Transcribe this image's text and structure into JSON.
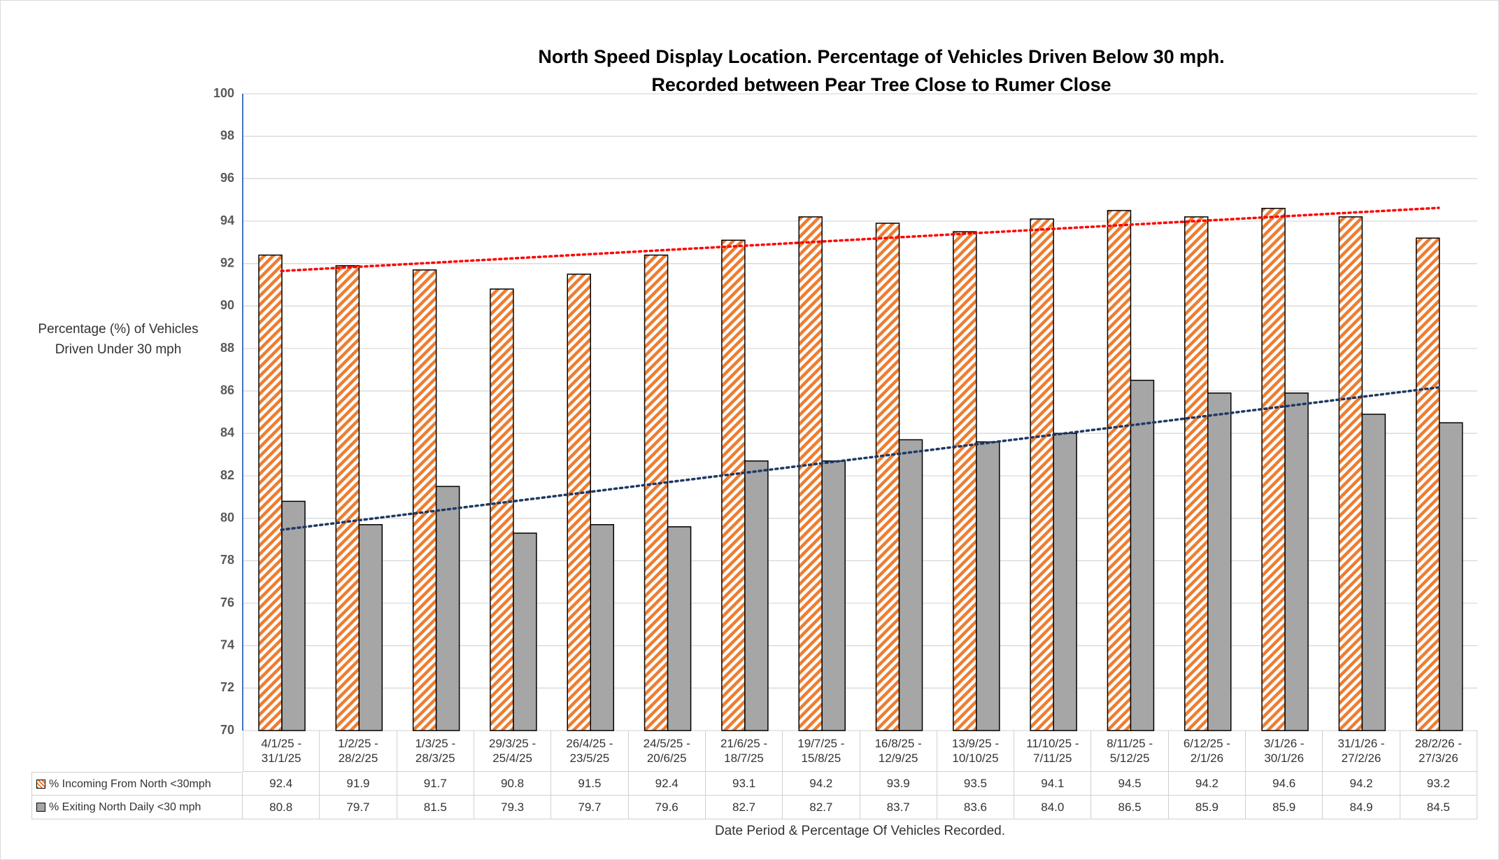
{
  "chart_data": {
    "type": "bar",
    "title": "North Speed Display Location. Percentage of Vehicles Driven Below 30 mph.",
    "subtitle": "Recorded between Pear Tree Close to Rumer Close",
    "y_label": "Percentage (%) of Vehicles Driven Under 30 mph",
    "x_label": "Date Period & Percentage Of Vehicles Recorded.",
    "categories": [
      "4/1/25 - 31/1/25",
      "1/2/25 - 28/2/25",
      "1/3/25 - 28/3/25",
      "29/3/25 - 25/4/25",
      "26/4/25 - 23/5/25",
      "24/5/25 - 20/6/25",
      "21/6/25 - 18/7/25",
      "19/7/25 - 15/8/25",
      "16/8/25 - 12/9/25",
      "13/9/25 - 10/10/25",
      "11/10/25 - 7/11/25",
      "8/11/25 - 5/12/25",
      "6/12/25 - 2/1/26",
      "3/1/26 - 30/1/26",
      "31/1/26 - 27/2/26",
      "28/2/26 - 27/3/26"
    ],
    "series": [
      {
        "name": "% Incoming From North <30mph",
        "color": "#ed7d31",
        "pattern": "hatch",
        "trendline_color": "#ff0000",
        "values": [
          92.4,
          91.9,
          91.7,
          90.8,
          91.5,
          92.4,
          93.1,
          94.2,
          93.9,
          93.5,
          94.1,
          94.5,
          94.2,
          94.6,
          94.2,
          93.2
        ]
      },
      {
        "name": "% Exiting North Daily <30 mph",
        "color": "#a6a6a6",
        "pattern": "solid",
        "trendline_color": "#1f3864",
        "values": [
          80.8,
          79.7,
          81.5,
          79.3,
          79.7,
          79.6,
          82.7,
          82.7,
          83.7,
          83.6,
          84,
          86.5,
          85.9,
          85.9,
          84.9,
          84.5
        ],
        "value_labels": [
          "80.8",
          "79.7",
          "81.5",
          "79.3",
          "79.7",
          "79.6",
          "82.7",
          "82.7",
          "83.7",
          "83.6",
          "84.0",
          "86.5",
          "85.9",
          "85.9",
          "84.9",
          "84.5"
        ]
      }
    ],
    "ylim": [
      70,
      100
    ],
    "yticks": [
      70,
      72,
      74,
      76,
      78,
      80,
      82,
      84,
      86,
      88,
      90,
      92,
      94,
      96,
      98,
      100
    ],
    "grid": true,
    "trendline": true,
    "data_table": true
  }
}
